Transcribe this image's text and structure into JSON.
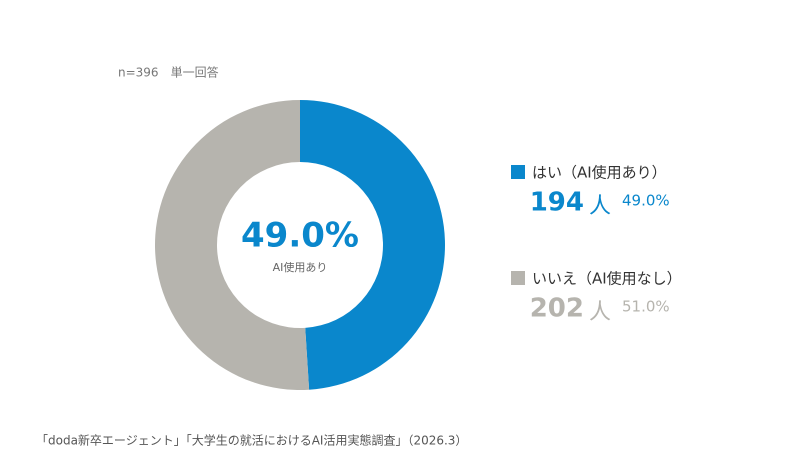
{
  "chart_data": {
    "type": "donut",
    "note": "n=396　単一回答",
    "categories": [
      "はい（AI使用あり）",
      "いいえ（AI使用なし）"
    ],
    "values": [
      49.0,
      51.0
    ],
    "value_labels": [
      "49.0%",
      "51.0%"
    ],
    "counts": [
      194,
      202
    ],
    "count_unit": "人",
    "colors": [
      "#0a87cc",
      "#b6b4ae"
    ],
    "center_label": "AI使用あり",
    "source": "「doda新卒エージェント」「大学生の就活におけるAI活用実態調査」（2026.3）"
  }
}
